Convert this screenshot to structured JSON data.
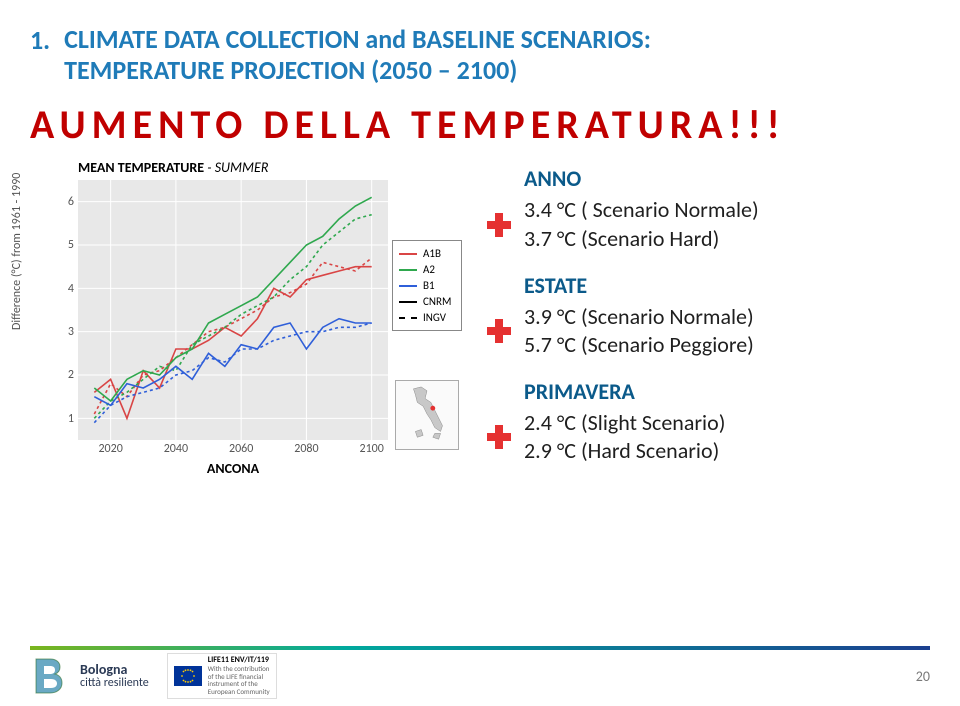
{
  "title": {
    "number": "1.",
    "text_line1": "CLIMATE DATA COLLECTION and BASELINE SCENARIOS:",
    "text_line2": "TEMPERATURE PROJECTION (2050 – 2100)"
  },
  "headline": "AUMENTO DELLA TEMPERATURA!!!",
  "chart": {
    "title_bold": "MEAN TEMPERATURE",
    "title_italic": " - SUMMER",
    "ylabel": "Difference (°C) from 1961 - 1990",
    "xlabel": "ANCONA",
    "ylim": [
      0.5,
      6.5
    ],
    "ytick_labels": [
      "1",
      "2",
      "3",
      "4",
      "5",
      "6"
    ],
    "ytick_values": [
      1,
      2,
      3,
      4,
      5,
      6
    ],
    "xlim": [
      2010,
      2105
    ],
    "xtick_labels": [
      "2020",
      "2040",
      "2060",
      "2080",
      "2100"
    ],
    "xtick_values": [
      2020,
      2040,
      2060,
      2080,
      2100
    ],
    "background_color": "#e8e8e8",
    "legend_items": [
      {
        "label": "A1B",
        "color": "#d94545",
        "dash": false
      },
      {
        "label": "A2",
        "color": "#2fa84e",
        "dash": false
      },
      {
        "label": "B1",
        "color": "#2f5fd9",
        "dash": false
      },
      {
        "label": "CNRM",
        "color": "#000000",
        "dash": false
      },
      {
        "label": "INGV",
        "color": "#000000",
        "dash": true
      }
    ],
    "series": [
      {
        "name": "A1B-CNRM",
        "color": "#d94545",
        "dash": false,
        "points": [
          [
            2015,
            1.6
          ],
          [
            2020,
            1.9
          ],
          [
            2025,
            1.0
          ],
          [
            2030,
            2.1
          ],
          [
            2035,
            1.7
          ],
          [
            2040,
            2.6
          ],
          [
            2045,
            2.6
          ],
          [
            2050,
            2.8
          ],
          [
            2055,
            3.1
          ],
          [
            2060,
            2.9
          ],
          [
            2065,
            3.3
          ],
          [
            2070,
            4.0
          ],
          [
            2075,
            3.8
          ],
          [
            2080,
            4.2
          ],
          [
            2085,
            4.3
          ],
          [
            2090,
            4.4
          ],
          [
            2095,
            4.5
          ],
          [
            2100,
            4.5
          ]
        ]
      },
      {
        "name": "A1B-INGV",
        "color": "#d94545",
        "dash": true,
        "points": [
          [
            2015,
            1.1
          ],
          [
            2020,
            1.8
          ],
          [
            2025,
            1.5
          ],
          [
            2030,
            2.0
          ],
          [
            2035,
            2.1
          ],
          [
            2040,
            2.4
          ],
          [
            2045,
            2.7
          ],
          [
            2050,
            3.0
          ],
          [
            2055,
            3.1
          ],
          [
            2060,
            3.3
          ],
          [
            2065,
            3.5
          ],
          [
            2070,
            3.8
          ],
          [
            2075,
            3.9
          ],
          [
            2080,
            4.1
          ],
          [
            2085,
            4.6
          ],
          [
            2090,
            4.5
          ],
          [
            2095,
            4.4
          ],
          [
            2100,
            4.7
          ]
        ]
      },
      {
        "name": "A2-CNRM",
        "color": "#2fa84e",
        "dash": false,
        "points": [
          [
            2015,
            1.7
          ],
          [
            2020,
            1.4
          ],
          [
            2025,
            1.9
          ],
          [
            2030,
            2.1
          ],
          [
            2035,
            2.0
          ],
          [
            2040,
            2.4
          ],
          [
            2045,
            2.6
          ],
          [
            2050,
            3.2
          ],
          [
            2055,
            3.4
          ],
          [
            2060,
            3.6
          ],
          [
            2065,
            3.8
          ],
          [
            2070,
            4.2
          ],
          [
            2075,
            4.6
          ],
          [
            2080,
            5.0
          ],
          [
            2085,
            5.2
          ],
          [
            2090,
            5.6
          ],
          [
            2095,
            5.9
          ],
          [
            2100,
            6.1
          ]
        ]
      },
      {
        "name": "A2-INGV",
        "color": "#2fa84e",
        "dash": true,
        "points": [
          [
            2015,
            1.0
          ],
          [
            2020,
            1.4
          ],
          [
            2025,
            1.6
          ],
          [
            2030,
            1.9
          ],
          [
            2035,
            2.2
          ],
          [
            2040,
            2.1
          ],
          [
            2045,
            2.7
          ],
          [
            2050,
            2.9
          ],
          [
            2055,
            3.1
          ],
          [
            2060,
            3.4
          ],
          [
            2065,
            3.6
          ],
          [
            2070,
            3.8
          ],
          [
            2075,
            4.2
          ],
          [
            2080,
            4.5
          ],
          [
            2085,
            5.0
          ],
          [
            2090,
            5.3
          ],
          [
            2095,
            5.6
          ],
          [
            2100,
            5.7
          ]
        ]
      },
      {
        "name": "B1-CNRM",
        "color": "#2f5fd9",
        "dash": false,
        "points": [
          [
            2015,
            1.5
          ],
          [
            2020,
            1.3
          ],
          [
            2025,
            1.8
          ],
          [
            2030,
            1.7
          ],
          [
            2035,
            1.9
          ],
          [
            2040,
            2.2
          ],
          [
            2045,
            1.9
          ],
          [
            2050,
            2.5
          ],
          [
            2055,
            2.2
          ],
          [
            2060,
            2.7
          ],
          [
            2065,
            2.6
          ],
          [
            2070,
            3.1
          ],
          [
            2075,
            3.2
          ],
          [
            2080,
            2.6
          ],
          [
            2085,
            3.1
          ],
          [
            2090,
            3.3
          ],
          [
            2095,
            3.2
          ],
          [
            2100,
            3.2
          ]
        ]
      },
      {
        "name": "B1-INGV",
        "color": "#2f5fd9",
        "dash": true,
        "points": [
          [
            2015,
            0.9
          ],
          [
            2020,
            1.3
          ],
          [
            2025,
            1.5
          ],
          [
            2030,
            1.6
          ],
          [
            2035,
            1.7
          ],
          [
            2040,
            2.0
          ],
          [
            2045,
            2.1
          ],
          [
            2050,
            2.4
          ],
          [
            2055,
            2.3
          ],
          [
            2060,
            2.6
          ],
          [
            2065,
            2.6
          ],
          [
            2070,
            2.8
          ],
          [
            2075,
            2.9
          ],
          [
            2080,
            3.0
          ],
          [
            2085,
            3.0
          ],
          [
            2090,
            3.1
          ],
          [
            2095,
            3.1
          ],
          [
            2100,
            3.2
          ]
        ]
      }
    ]
  },
  "results": {
    "anno": {
      "label": "ANNO",
      "line1": "3.4 °C ( Scenario Normale)",
      "line2": "3.7 °C (Scenario Hard)"
    },
    "estate": {
      "label": "ESTATE",
      "line1": "3.9 °C (Scenario Normale)",
      "line2": "5.7 °C (Scenario Peggiore)"
    },
    "primavera": {
      "label": "PRIMAVERA",
      "line1": "2.4 °C (Slight Scenario)",
      "line2": "2.9 °C (Hard Scenario)"
    }
  },
  "footer": {
    "bologna_main": "Bologna",
    "bologna_sub": "città resiliente",
    "life_code": "LIFE11 ENV/IT/119",
    "life_sub1": "With the contribution",
    "life_sub2": "of the LIFE financial",
    "life_sub3": "instrument of the",
    "life_sub4": "European Community",
    "page": "20"
  },
  "colors": {
    "title_blue": "#1f7bb8",
    "red_headline": "#c00000",
    "plus_red": "#e53131",
    "label_blue": "#0b5a8a"
  }
}
